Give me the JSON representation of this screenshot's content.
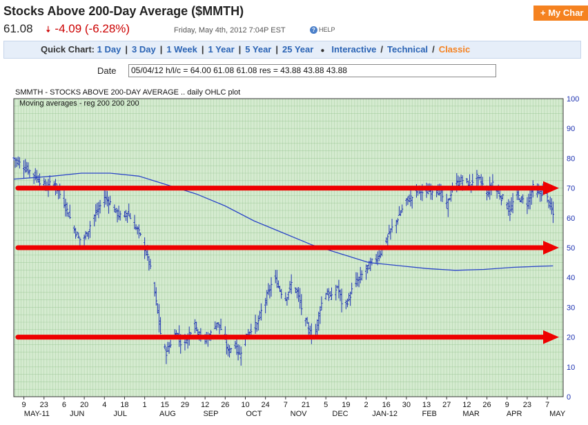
{
  "header": {
    "title": "Stocks Above 200-Day Average ($MMTH)",
    "my_chart_label": "+ My Char",
    "last": "61.08",
    "change": "-4.09 (-6.28%)",
    "timestamp": "Friday, May 4th, 2012 7:04P EST",
    "help_label": "HELP"
  },
  "quick_chart": {
    "label": "Quick Chart:",
    "links": [
      "1 Day",
      "3 Day",
      "1 Week",
      "1 Year",
      "5 Year",
      "25 Year"
    ],
    "interactive": "Interactive",
    "technical": "Technical",
    "classic": "Classic"
  },
  "date_field": {
    "label": "Date",
    "value": "05/04/12 h/l/c = 64.00 61.08 61.08 res = 43.88 43.88 43.88"
  },
  "chart_data": {
    "type": "ohlc",
    "title": "SMMTH - STOCKS ABOVE 200-DAY AVERAGE .. daily OHLC plot",
    "subtitle": "Moving averages - reg  200 200 200",
    "ylim": [
      0,
      100
    ],
    "y_ticks": [
      0,
      10,
      20,
      30,
      40,
      50,
      60,
      70,
      80,
      90,
      100
    ],
    "x_ticks": [
      {
        "label": "9",
        "day": 0
      },
      {
        "label": "23",
        "day": 14
      },
      {
        "label": "6",
        "day": 28
      },
      {
        "label": "20",
        "day": 42
      },
      {
        "label": "4",
        "day": 56
      },
      {
        "label": "18",
        "day": 70
      },
      {
        "label": "1",
        "day": 84
      },
      {
        "label": "15",
        "day": 98
      },
      {
        "label": "29",
        "day": 112
      },
      {
        "label": "12",
        "day": 126
      },
      {
        "label": "26",
        "day": 140
      },
      {
        "label": "10",
        "day": 154
      },
      {
        "label": "24",
        "day": 168
      },
      {
        "label": "7",
        "day": 182
      },
      {
        "label": "21",
        "day": 196
      },
      {
        "label": "5",
        "day": 210
      },
      {
        "label": "19",
        "day": 224
      },
      {
        "label": "2",
        "day": 238
      },
      {
        "label": "16",
        "day": 252
      },
      {
        "label": "30",
        "day": 266
      },
      {
        "label": "13",
        "day": 280
      },
      {
        "label": "27",
        "day": 294
      },
      {
        "label": "12",
        "day": 308
      },
      {
        "label": "26",
        "day": 322
      },
      {
        "label": "9",
        "day": 336
      },
      {
        "label": "23",
        "day": 350
      },
      {
        "label": "7",
        "day": 364
      }
    ],
    "months": [
      {
        "label": "MAY-11",
        "day": 9
      },
      {
        "label": "JUN",
        "day": 37
      },
      {
        "label": "JUL",
        "day": 67
      },
      {
        "label": "AUG",
        "day": 100
      },
      {
        "label": "SEP",
        "day": 130
      },
      {
        "label": "OCT",
        "day": 160
      },
      {
        "label": "NOV",
        "day": 191
      },
      {
        "label": "DEC",
        "day": 220
      },
      {
        "label": "JAN-12",
        "day": 251
      },
      {
        "label": "FEB",
        "day": 282
      },
      {
        "label": "MAR",
        "day": 311
      },
      {
        "label": "APR",
        "day": 341
      },
      {
        "label": "MAY",
        "day": 371
      }
    ],
    "day_range": [
      -7,
      375
    ],
    "close_path": [
      [
        -7,
        80
      ],
      [
        0,
        77
      ],
      [
        6,
        75
      ],
      [
        12,
        72
      ],
      [
        16,
        70
      ],
      [
        20,
        72
      ],
      [
        24,
        69
      ],
      [
        28,
        65
      ],
      [
        32,
        60
      ],
      [
        36,
        55
      ],
      [
        40,
        52
      ],
      [
        44,
        55
      ],
      [
        48,
        60
      ],
      [
        52,
        63
      ],
      [
        56,
        67
      ],
      [
        60,
        65
      ],
      [
        64,
        62
      ],
      [
        68,
        60
      ],
      [
        72,
        62
      ],
      [
        76,
        58
      ],
      [
        80,
        55
      ],
      [
        84,
        50
      ],
      [
        87,
        45
      ],
      [
        90,
        38
      ],
      [
        93,
        28
      ],
      [
        96,
        18
      ],
      [
        99,
        15
      ],
      [
        102,
        18
      ],
      [
        106,
        22
      ],
      [
        110,
        17
      ],
      [
        114,
        20
      ],
      [
        118,
        25
      ],
      [
        122,
        21
      ],
      [
        126,
        19
      ],
      [
        130,
        21
      ],
      [
        134,
        25
      ],
      [
        138,
        22
      ],
      [
        142,
        15
      ],
      [
        146,
        18
      ],
      [
        150,
        14
      ],
      [
        154,
        20
      ],
      [
        158,
        23
      ],
      [
        162,
        24
      ],
      [
        166,
        30
      ],
      [
        170,
        35
      ],
      [
        174,
        40
      ],
      [
        178,
        36
      ],
      [
        182,
        33
      ],
      [
        186,
        38
      ],
      [
        190,
        35
      ],
      [
        194,
        28
      ],
      [
        198,
        22
      ],
      [
        202,
        20
      ],
      [
        206,
        30
      ],
      [
        210,
        35
      ],
      [
        214,
        33
      ],
      [
        218,
        37
      ],
      [
        222,
        30
      ],
      [
        226,
        33
      ],
      [
        230,
        38
      ],
      [
        234,
        40
      ],
      [
        238,
        43
      ],
      [
        242,
        45
      ],
      [
        246,
        47
      ],
      [
        250,
        50
      ],
      [
        254,
        55
      ],
      [
        258,
        58
      ],
      [
        262,
        62
      ],
      [
        266,
        66
      ],
      [
        270,
        67
      ],
      [
        274,
        70
      ],
      [
        278,
        68
      ],
      [
        282,
        69
      ],
      [
        286,
        70
      ],
      [
        290,
        68
      ],
      [
        294,
        64
      ],
      [
        298,
        70
      ],
      [
        302,
        72
      ],
      [
        306,
        73
      ],
      [
        310,
        71
      ],
      [
        314,
        74
      ],
      [
        318,
        72
      ],
      [
        322,
        68
      ],
      [
        326,
        72
      ],
      [
        330,
        68
      ],
      [
        334,
        66
      ],
      [
        338,
        62
      ],
      [
        342,
        68
      ],
      [
        346,
        66
      ],
      [
        350,
        65
      ],
      [
        354,
        70
      ],
      [
        358,
        68
      ],
      [
        362,
        69
      ],
      [
        365,
        65
      ],
      [
        368,
        61.08
      ]
    ],
    "moving_average_200": [
      [
        -7,
        73
      ],
      [
        20,
        74
      ],
      [
        40,
        75
      ],
      [
        60,
        75
      ],
      [
        80,
        74
      ],
      [
        100,
        71
      ],
      [
        120,
        68
      ],
      [
        140,
        64
      ],
      [
        160,
        59
      ],
      [
        180,
        55
      ],
      [
        200,
        51
      ],
      [
        220,
        48
      ],
      [
        240,
        45
      ],
      [
        260,
        44
      ],
      [
        280,
        43
      ],
      [
        300,
        42.4
      ],
      [
        320,
        42.7
      ],
      [
        340,
        43.4
      ],
      [
        360,
        43.8
      ],
      [
        368,
        43.88
      ]
    ],
    "annotation_arrows": [
      {
        "level": 70,
        "color": "#ee0000"
      },
      {
        "level": 50,
        "color": "#ee0000"
      },
      {
        "level": 20,
        "color": "#ee0000"
      }
    ],
    "colors": {
      "bars": "#1a2fb0",
      "moving_average": "#2a44c8",
      "plot_background": "#d5ebd0",
      "grid": "#8fbf8a",
      "axis_labels": "#1a2fb0",
      "arrows": "#ee0000"
    }
  }
}
